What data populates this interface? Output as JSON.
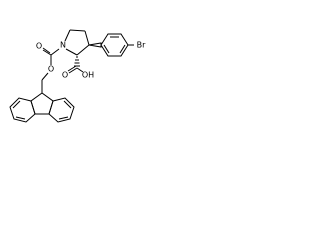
{
  "atoms": [
    {
      "label": "N"
    },
    {
      "label": "O"
    },
    {
      "label": "O"
    },
    {
      "label": "O"
    },
    {
      "label": "OH"
    },
    {
      "label": "Br"
    }
  ]
}
